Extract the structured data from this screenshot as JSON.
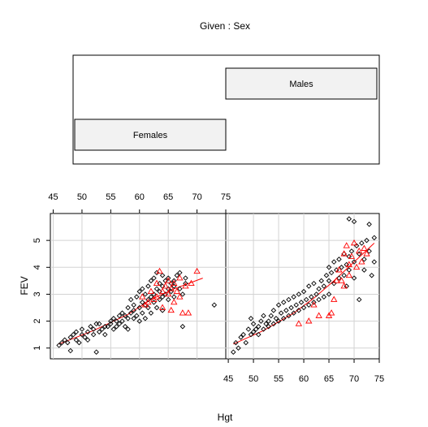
{
  "chart_data": {
    "type": "scatter",
    "title": "Given : Sex",
    "xlabel": "Hgt",
    "ylabel": "FEV",
    "x_ticks": [
      45,
      50,
      55,
      60,
      65,
      70,
      75
    ],
    "y_ticks": [
      1,
      2,
      3,
      4,
      5
    ],
    "xlim": [
      44.5,
      75
    ],
    "ylim": [
      0.6,
      6.0
    ],
    "grid": true,
    "given_panel": {
      "levels": [
        "Females",
        "Males"
      ]
    },
    "panels": [
      {
        "name": "Females",
        "non_smoker_points": [
          [
            46,
            1.1
          ],
          [
            46.5,
            1.2
          ],
          [
            47,
            1.3
          ],
          [
            47.5,
            1.2
          ],
          [
            48,
            1.4
          ],
          [
            48,
            0.9
          ],
          [
            48.5,
            1.5
          ],
          [
            49,
            1.3
          ],
          [
            49,
            1.6
          ],
          [
            49.5,
            1.2
          ],
          [
            50,
            1.5
          ],
          [
            50,
            1.7
          ],
          [
            50.5,
            1.4
          ],
          [
            51,
            1.6
          ],
          [
            51,
            1.3
          ],
          [
            51.5,
            1.8
          ],
          [
            52,
            1.5
          ],
          [
            52,
            1.7
          ],
          [
            52.5,
            0.85
          ],
          [
            52.5,
            1.9
          ],
          [
            53,
            1.6
          ],
          [
            53,
            1.9
          ],
          [
            53.5,
            1.7
          ],
          [
            54,
            1.5
          ],
          [
            54,
            1.8
          ],
          [
            54.5,
            1.8
          ],
          [
            55,
            1.9
          ],
          [
            55,
            2.0
          ],
          [
            55.5,
            1.7
          ],
          [
            55.5,
            2.1
          ],
          [
            56,
            2.0
          ],
          [
            56,
            1.8
          ],
          [
            56.5,
            2.2
          ],
          [
            56.5,
            1.9
          ],
          [
            57,
            2.3
          ],
          [
            57,
            2.0
          ],
          [
            57.5,
            1.8
          ],
          [
            57.5,
            2.2
          ],
          [
            58,
            2.1
          ],
          [
            58,
            2.5
          ],
          [
            58,
            1.7
          ],
          [
            58.5,
            2.3
          ],
          [
            58.5,
            2.8
          ],
          [
            59,
            2.4
          ],
          [
            59,
            2.1
          ],
          [
            59,
            2.6
          ],
          [
            59.5,
            2.2
          ],
          [
            59.5,
            2.9
          ],
          [
            60,
            2.5
          ],
          [
            60,
            3.1
          ],
          [
            60,
            2.0
          ],
          [
            60.5,
            2.7
          ],
          [
            60.5,
            3.2
          ],
          [
            60.5,
            2.3
          ],
          [
            61,
            2.6
          ],
          [
            61,
            3.0
          ],
          [
            61,
            2.1
          ],
          [
            61.5,
            2.8
          ],
          [
            61.5,
            3.3
          ],
          [
            61.5,
            2.5
          ],
          [
            62,
            2.9
          ],
          [
            62,
            3.5
          ],
          [
            62,
            2.3
          ],
          [
            62.5,
            3.0
          ],
          [
            62.5,
            2.7
          ],
          [
            62.5,
            3.6
          ],
          [
            63,
            3.2
          ],
          [
            63,
            2.5
          ],
          [
            63,
            3.8
          ],
          [
            63.5,
            3.1
          ],
          [
            63.5,
            2.8
          ],
          [
            63.5,
            3.4
          ],
          [
            64,
            3.3
          ],
          [
            64,
            2.9
          ],
          [
            64,
            3.7
          ],
          [
            64,
            2.4
          ],
          [
            64.5,
            3.0
          ],
          [
            64.5,
            3.5
          ],
          [
            65,
            3.2
          ],
          [
            65,
            2.8
          ],
          [
            65,
            3.6
          ],
          [
            65.5,
            3.4
          ],
          [
            65.5,
            3.1
          ],
          [
            66,
            3.5
          ],
          [
            66,
            2.9
          ],
          [
            66,
            3.3
          ],
          [
            66.5,
            3.7
          ],
          [
            67,
            3.2
          ],
          [
            67,
            3.8
          ],
          [
            67.5,
            3.0
          ],
          [
            67.5,
            1.8
          ],
          [
            68,
            3.6
          ],
          [
            68,
            3.4
          ],
          [
            73,
            2.6
          ]
        ],
        "smoker_points": [
          [
            60.5,
            2.9
          ],
          [
            61,
            2.6
          ],
          [
            61.5,
            2.7
          ],
          [
            62,
            3.1
          ],
          [
            62.5,
            2.8
          ],
          [
            63,
            2.9
          ],
          [
            63,
            3.4
          ],
          [
            63.5,
            3.85
          ],
          [
            64,
            3.1
          ],
          [
            64,
            2.5
          ],
          [
            64.5,
            3.3
          ],
          [
            65,
            3.0
          ],
          [
            65,
            3.5
          ],
          [
            65.5,
            2.4
          ],
          [
            65.5,
            3.2
          ],
          [
            66,
            2.7
          ],
          [
            66,
            3.4
          ],
          [
            66.5,
            3.1
          ],
          [
            67,
            2.9
          ],
          [
            67,
            3.6
          ],
          [
            67.5,
            2.3
          ],
          [
            68,
            3.3
          ],
          [
            68.5,
            2.3
          ],
          [
            69,
            3.4
          ],
          [
            70,
            3.85
          ]
        ],
        "fit_line": [
          [
            46,
            1.15
          ],
          [
            52,
            1.65
          ],
          [
            58,
            2.25
          ],
          [
            62,
            2.8
          ],
          [
            66,
            3.2
          ],
          [
            71,
            3.6
          ]
        ]
      },
      {
        "name": "Males",
        "non_smoker_points": [
          [
            46,
            0.85
          ],
          [
            46.5,
            1.2
          ],
          [
            47,
            1.0
          ],
          [
            47.5,
            1.4
          ],
          [
            48,
            1.5
          ],
          [
            48.5,
            1.2
          ],
          [
            49,
            1.7
          ],
          [
            49.5,
            1.5
          ],
          [
            49.5,
            2.1
          ],
          [
            50,
            1.6
          ],
          [
            50,
            1.9
          ],
          [
            50.5,
            1.7
          ],
          [
            51,
            1.8
          ],
          [
            51,
            1.5
          ],
          [
            51.5,
            2.0
          ],
          [
            52,
            1.7
          ],
          [
            52,
            2.2
          ],
          [
            52.5,
            1.9
          ],
          [
            53,
            2.0
          ],
          [
            53,
            1.8
          ],
          [
            53.5,
            2.2
          ],
          [
            54,
            1.9
          ],
          [
            54,
            2.4
          ],
          [
            54.5,
            2.1
          ],
          [
            55,
            2.0
          ],
          [
            55,
            2.6
          ],
          [
            55.5,
            2.3
          ],
          [
            56,
            2.1
          ],
          [
            56,
            2.7
          ],
          [
            56.5,
            2.4
          ],
          [
            57,
            2.2
          ],
          [
            57,
            2.8
          ],
          [
            57.5,
            2.5
          ],
          [
            58,
            2.3
          ],
          [
            58,
            2.9
          ],
          [
            58.5,
            2.6
          ],
          [
            59,
            2.4
          ],
          [
            59,
            3.0
          ],
          [
            59.5,
            2.7
          ],
          [
            60,
            2.5
          ],
          [
            60,
            3.1
          ],
          [
            60.5,
            2.8
          ],
          [
            61,
            2.6
          ],
          [
            61,
            3.3
          ],
          [
            61.5,
            2.9
          ],
          [
            62,
            2.7
          ],
          [
            62,
            3.4
          ],
          [
            62.5,
            3.0
          ],
          [
            63,
            3.2
          ],
          [
            63,
            2.8
          ],
          [
            63.5,
            3.5
          ],
          [
            64,
            3.3
          ],
          [
            64,
            2.9
          ],
          [
            64.5,
            3.7
          ],
          [
            65,
            3.5
          ],
          [
            65,
            3.0
          ],
          [
            65,
            4.0
          ],
          [
            65.5,
            3.8
          ],
          [
            66,
            3.4
          ],
          [
            66,
            4.2
          ],
          [
            66.5,
            3.9
          ],
          [
            67,
            3.6
          ],
          [
            67,
            4.3
          ],
          [
            67.5,
            4.0
          ],
          [
            68,
            3.7
          ],
          [
            68,
            4.5
          ],
          [
            68.5,
            4.1
          ],
          [
            68.5,
            3.3
          ],
          [
            69,
            4.4
          ],
          [
            69,
            3.9
          ],
          [
            69,
            5.8
          ],
          [
            69.5,
            4.6
          ],
          [
            70,
            4.2
          ],
          [
            70,
            5.7
          ],
          [
            70,
            3.6
          ],
          [
            70.5,
            4.8
          ],
          [
            71,
            4.5
          ],
          [
            71,
            2.8
          ],
          [
            71.5,
            4.9
          ],
          [
            72,
            4.3
          ],
          [
            72,
            3.9
          ],
          [
            72.5,
            5.0
          ],
          [
            73,
            5.6
          ],
          [
            73,
            4.6
          ],
          [
            73.5,
            3.7
          ],
          [
            74,
            5.1
          ],
          [
            74,
            4.2
          ]
        ],
        "smoker_points": [
          [
            59,
            1.9
          ],
          [
            61,
            2.0
          ],
          [
            62,
            2.6
          ],
          [
            63,
            2.2
          ],
          [
            65,
            2.2
          ],
          [
            65.5,
            2.3
          ],
          [
            66,
            2.8
          ],
          [
            66.5,
            3.5
          ],
          [
            67,
            3.9
          ],
          [
            67.5,
            3.5
          ],
          [
            68,
            4.5
          ],
          [
            68,
            3.3
          ],
          [
            68.5,
            4.8
          ],
          [
            69,
            4.1
          ],
          [
            69,
            3.7
          ],
          [
            69.5,
            4.4
          ],
          [
            70,
            4.9
          ],
          [
            70.5,
            4.0
          ],
          [
            71,
            4.6
          ],
          [
            71.5,
            4.2
          ],
          [
            72,
            4.7
          ],
          [
            72.5,
            4.5
          ]
        ],
        "fit_line": [
          [
            46,
            1.15
          ],
          [
            52,
            1.65
          ],
          [
            58,
            2.3
          ],
          [
            62,
            2.85
          ],
          [
            66,
            3.5
          ],
          [
            70,
            4.2
          ],
          [
            74,
            4.9
          ]
        ]
      }
    ]
  }
}
